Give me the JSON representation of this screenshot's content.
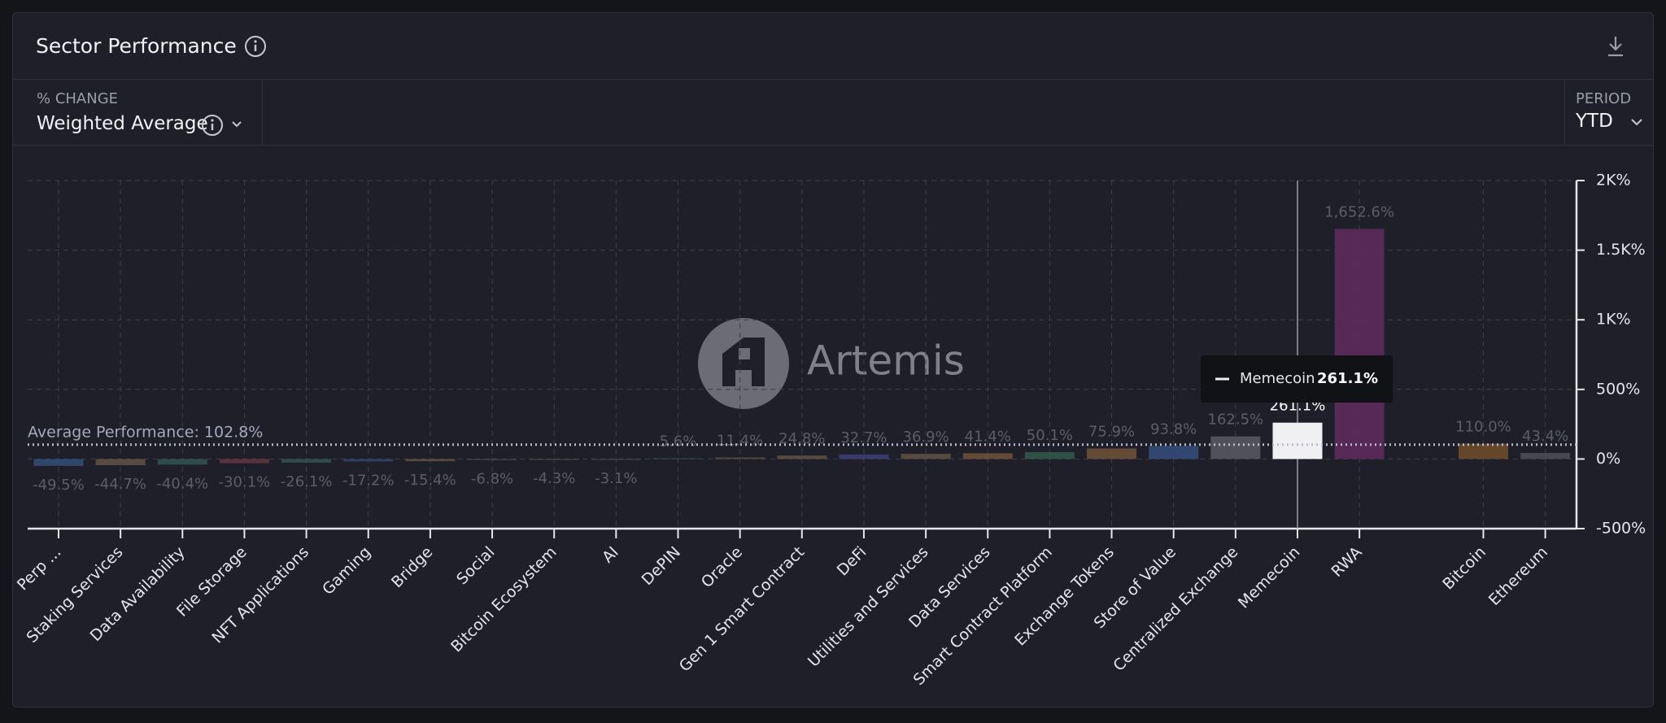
{
  "header": {
    "title": "Sector Performance"
  },
  "controls": {
    "metric_caption": "% CHANGE",
    "metric": "Weighted Average",
    "period_caption": "PERIOD",
    "period": "YTD"
  },
  "watermark": "Artemis",
  "chart_data": {
    "type": "bar",
    "categories": [
      "Perp ...",
      "Staking Services",
      "Data Availability",
      "File Storage",
      "NFT Applications",
      "Gaming",
      "Bridge",
      "Social",
      "Bitcoin Ecosystem",
      "AI",
      "DePIN",
      "Oracle",
      "Gen 1 Smart Contract",
      "DeFi",
      "Utilities and Services",
      "Data Services",
      "Smart Contract Platform",
      "Exchange Tokens",
      "Store of Value",
      "Centralized Exchange",
      "Memecoin",
      "RWA",
      null,
      "Bitcoin",
      "Ethereum"
    ],
    "values": [
      -49.5,
      -44.7,
      -40.4,
      -30.1,
      -26.1,
      -17.2,
      -15.4,
      -6.8,
      -4.3,
      -3.1,
      5.6,
      11.4,
      24.8,
      32.7,
      36.9,
      41.4,
      50.1,
      75.9,
      93.8,
      162.5,
      261.1,
      1652.6,
      null,
      110.0,
      43.4
    ],
    "value_labels": [
      "-49.5%",
      "-44.7%",
      "-40.4%",
      "-30.1%",
      "-26.1%",
      "-17.2%",
      "-15.4%",
      "-6.8%",
      "-4.3%",
      "-3.1%",
      "5.6%",
      "11.4%",
      "24.8%",
      "32.7%",
      "36.9%",
      "41.4%",
      "50.1%",
      "75.9%",
      "93.8%",
      "162.5%",
      "261.1%",
      "1,652.6%",
      null,
      "110.0%",
      "43.4%"
    ],
    "colors": [
      "#324a72",
      "#5c5040",
      "#31504f",
      "#5e3540",
      "#31504f",
      "#32406a",
      "#5c5040",
      "#4a4a55",
      "#5c5040",
      "#4a4a55",
      "#31504f",
      "#5c4a36",
      "#5c5040",
      "#3a3d72",
      "#5c5040",
      "#6b5038",
      "#31574a",
      "#6b5038",
      "#334a78",
      "#55575f",
      "#f0f0f2",
      "#5c2a5c",
      null,
      "#6b4a2a",
      "#4a4b55"
    ],
    "ylim": [
      -500,
      2000
    ],
    "yticks": [
      {
        "value": -500,
        "label": "-500%"
      },
      {
        "value": 0,
        "label": "0%"
      },
      {
        "value": 500,
        "label": "500%"
      },
      {
        "value": 1000,
        "label": "1K%"
      },
      {
        "value": 1500,
        "label": "1.5K%"
      },
      {
        "value": 2000,
        "label": "2K%"
      }
    ],
    "grid": true,
    "average": {
      "value": 102.8,
      "label": "Average Performance: 102.8%"
    },
    "tooltip": {
      "label": "Memecoin",
      "value": "261.1%"
    }
  }
}
